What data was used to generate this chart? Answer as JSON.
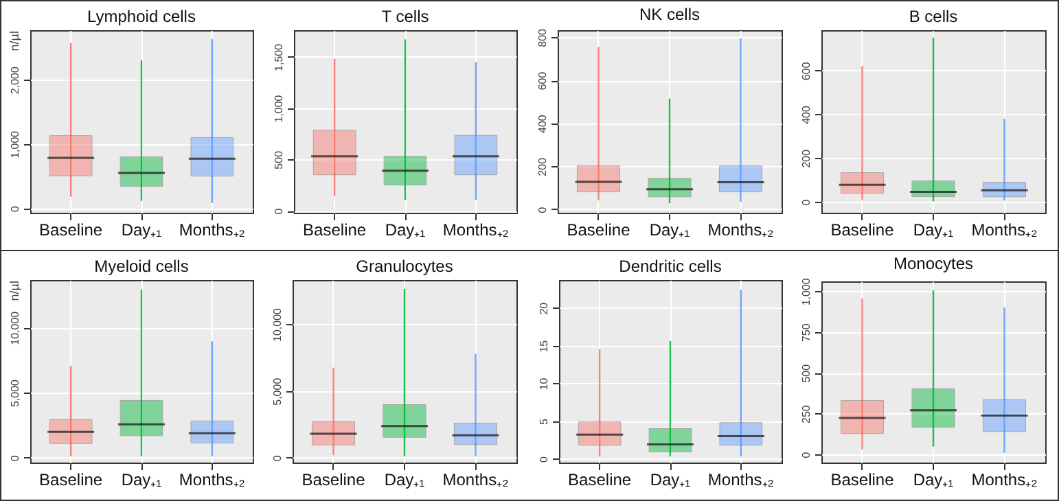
{
  "chart_data": [
    {
      "type": "box",
      "title": "Lymphoid cells",
      "ylabel": "n/µl",
      "categories": [
        "Baseline",
        "Day₊₁",
        "Months₊₂"
      ],
      "colors": [
        "#f8766d",
        "#00ba38",
        "#619cff"
      ],
      "grid": true,
      "ylim": [
        -70,
        2770
      ],
      "yticks": [
        0,
        {
          "value": 1000,
          "label": "1,000"
        },
        {
          "value": 2000,
          "label": "2,000"
        }
      ],
      "boxes": [
        {
          "low": 180,
          "q1": 505,
          "median": 785,
          "q3": 1130,
          "high": 2570
        },
        {
          "low": 115,
          "q1": 340,
          "median": 550,
          "q3": 800,
          "high": 2300
        },
        {
          "low": 80,
          "q1": 500,
          "median": 770,
          "q3": 1100,
          "high": 2630
        }
      ]
    },
    {
      "type": "box",
      "title": "T cells",
      "categories": [
        "Baseline",
        "Day₊₁",
        "Months₊₂"
      ],
      "colors": [
        "#f8766d",
        "#00ba38",
        "#619cff"
      ],
      "grid": true,
      "ylim": [
        -20,
        1760
      ],
      "yticks": [
        0,
        500,
        {
          "value": 1000,
          "label": "1,000"
        },
        {
          "value": 1500,
          "label": "1,500"
        }
      ],
      "boxes": [
        {
          "low": 140,
          "q1": 350,
          "median": 530,
          "q3": 785,
          "high": 1480
        },
        {
          "low": 105,
          "q1": 250,
          "median": 390,
          "q3": 530,
          "high": 1670
        },
        {
          "low": 105,
          "q1": 350,
          "median": 530,
          "q3": 735,
          "high": 1450
        }
      ]
    },
    {
      "type": "box",
      "title": "NK cells",
      "categories": [
        "Baseline",
        "Day₊₁",
        "Months₊₂"
      ],
      "colors": [
        "#f8766d",
        "#00ba38",
        "#619cff"
      ],
      "grid": true,
      "ylim": [
        -16,
        833
      ],
      "yticks": [
        0,
        200,
        400,
        600,
        800
      ],
      "boxes": [
        {
          "low": 42,
          "q1": 81,
          "median": 128,
          "q3": 202,
          "high": 755
        },
        {
          "low": 28,
          "q1": 58,
          "median": 93,
          "q3": 144,
          "high": 515
        },
        {
          "low": 35,
          "q1": 81,
          "median": 126,
          "q3": 202,
          "high": 795
        }
      ]
    },
    {
      "type": "box",
      "title": "B cells",
      "categories": [
        "Baseline",
        "Day₊₁",
        "Months₊₂"
      ],
      "colors": [
        "#f8766d",
        "#00ba38",
        "#619cff"
      ],
      "grid": true,
      "ylim": [
        -50,
        784
      ],
      "yticks": [
        0,
        200,
        400,
        600
      ],
      "boxes": [
        {
          "low": 7,
          "q1": 39,
          "median": 78,
          "q3": 133,
          "high": 620
        },
        {
          "low": 2,
          "q1": 23,
          "median": 46,
          "q3": 96,
          "high": 750
        },
        {
          "low": 5,
          "q1": 23,
          "median": 53,
          "q3": 89,
          "high": 380
        }
      ]
    },
    {
      "type": "box",
      "title": "Myeloid cells",
      "ylabel": "n/µl",
      "categories": [
        "Baseline",
        "Day₊₁",
        "Months₊₂"
      ],
      "colors": [
        "#f8766d",
        "#00ba38",
        "#619cff"
      ],
      "grid": true,
      "ylim": [
        -375,
        13650
      ],
      "yticks": [
        0,
        {
          "value": 5000,
          "label": "5,000"
        },
        {
          "value": 10000,
          "label": "10,000"
        }
      ],
      "boxes": [
        {
          "low": 110,
          "q1": 1090,
          "median": 1990,
          "q3": 2930,
          "high": 7070
        },
        {
          "low": 110,
          "q1": 1690,
          "median": 2560,
          "q3": 4400,
          "high": 12900
        },
        {
          "low": 110,
          "q1": 1130,
          "median": 1880,
          "q3": 2820,
          "high": 8950
        }
      ]
    },
    {
      "type": "box",
      "title": "Granulocytes",
      "categories": [
        "Baseline",
        "Day₊₁",
        "Months₊₂"
      ],
      "colors": [
        "#f8766d",
        "#00ba38",
        "#619cff"
      ],
      "grid": true,
      "ylim": [
        -365,
        13320
      ],
      "yticks": [
        0,
        {
          "value": 5000,
          "label": "5,000"
        },
        {
          "value": 10000,
          "label": "10,000"
        }
      ],
      "boxes": [
        {
          "low": 180,
          "q1": 950,
          "median": 1790,
          "q3": 2700,
          "high": 6750
        },
        {
          "low": 110,
          "q1": 1530,
          "median": 2370,
          "q3": 3980,
          "high": 12660
        },
        {
          "low": 110,
          "q1": 985,
          "median": 1680,
          "q3": 2590,
          "high": 7770
        }
      ]
    },
    {
      "type": "box",
      "title": "Dendritic cells",
      "categories": [
        "Baseline",
        "Day₊₁",
        "Months₊₂"
      ],
      "colors": [
        "#f8766d",
        "#00ba38",
        "#619cff"
      ],
      "grid": true,
      "ylim": [
        -0.5,
        23.7
      ],
      "yticks": [
        0,
        5,
        10,
        15,
        20
      ],
      "boxes": [
        {
          "low": 0.3,
          "q1": 1.8,
          "median": 3.2,
          "q3": 4.9,
          "high": 14.5
        },
        {
          "low": 0.3,
          "q1": 0.9,
          "median": 1.9,
          "q3": 4,
          "high": 15.6
        },
        {
          "low": 0.3,
          "q1": 1.8,
          "median": 3,
          "q3": 4.8,
          "high": 22.4
        }
      ]
    },
    {
      "type": "box",
      "title": "Monocytes",
      "categories": [
        "Baseline",
        "Day₊₁",
        "Months₊₂"
      ],
      "colors": [
        "#f8766d",
        "#00ba38",
        "#619cff"
      ],
      "grid": true,
      "ylim": [
        -50,
        1060
      ],
      "yticks": [
        0,
        250,
        500,
        750,
        {
          "value": 1000,
          "label": "1,000"
        }
      ],
      "boxes": [
        {
          "low": 30,
          "q1": 128,
          "median": 223,
          "q3": 330,
          "high": 955
        },
        {
          "low": 48,
          "q1": 167,
          "median": 271,
          "q3": 402,
          "high": 1005
        },
        {
          "low": 9,
          "q1": 140,
          "median": 238,
          "q3": 336,
          "high": 900
        }
      ]
    }
  ]
}
